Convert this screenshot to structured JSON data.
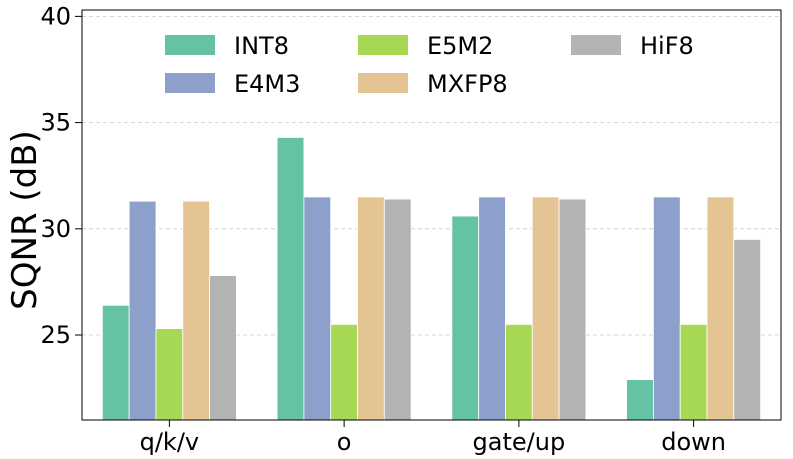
{
  "chart_data": {
    "type": "bar",
    "title": "",
    "xlabel": "",
    "ylabel": "SQNR (dB)",
    "ylim": [
      21,
      40.3
    ],
    "yticks": [
      25,
      30,
      35,
      40
    ],
    "grid": "y-dashed",
    "legend_position": "top",
    "categories": [
      "q/k/v",
      "o",
      "gate/up",
      "down"
    ],
    "series": [
      {
        "name": "INT8",
        "color": "#66c2a5",
        "values": [
          26.4,
          34.3,
          30.6,
          22.9
        ]
      },
      {
        "name": "E4M3",
        "color": "#8da0cb",
        "values": [
          31.3,
          31.5,
          31.5,
          31.5
        ]
      },
      {
        "name": "E5M2",
        "color": "#a6d854",
        "values": [
          25.3,
          25.5,
          25.5,
          25.5
        ]
      },
      {
        "name": "MXFP8",
        "color": "#e5c494",
        "values": [
          31.3,
          31.5,
          31.5,
          31.5
        ]
      },
      {
        "name": "HiF8",
        "color": "#b3b3b3",
        "values": [
          27.8,
          31.4,
          31.4,
          29.5
        ]
      }
    ]
  }
}
